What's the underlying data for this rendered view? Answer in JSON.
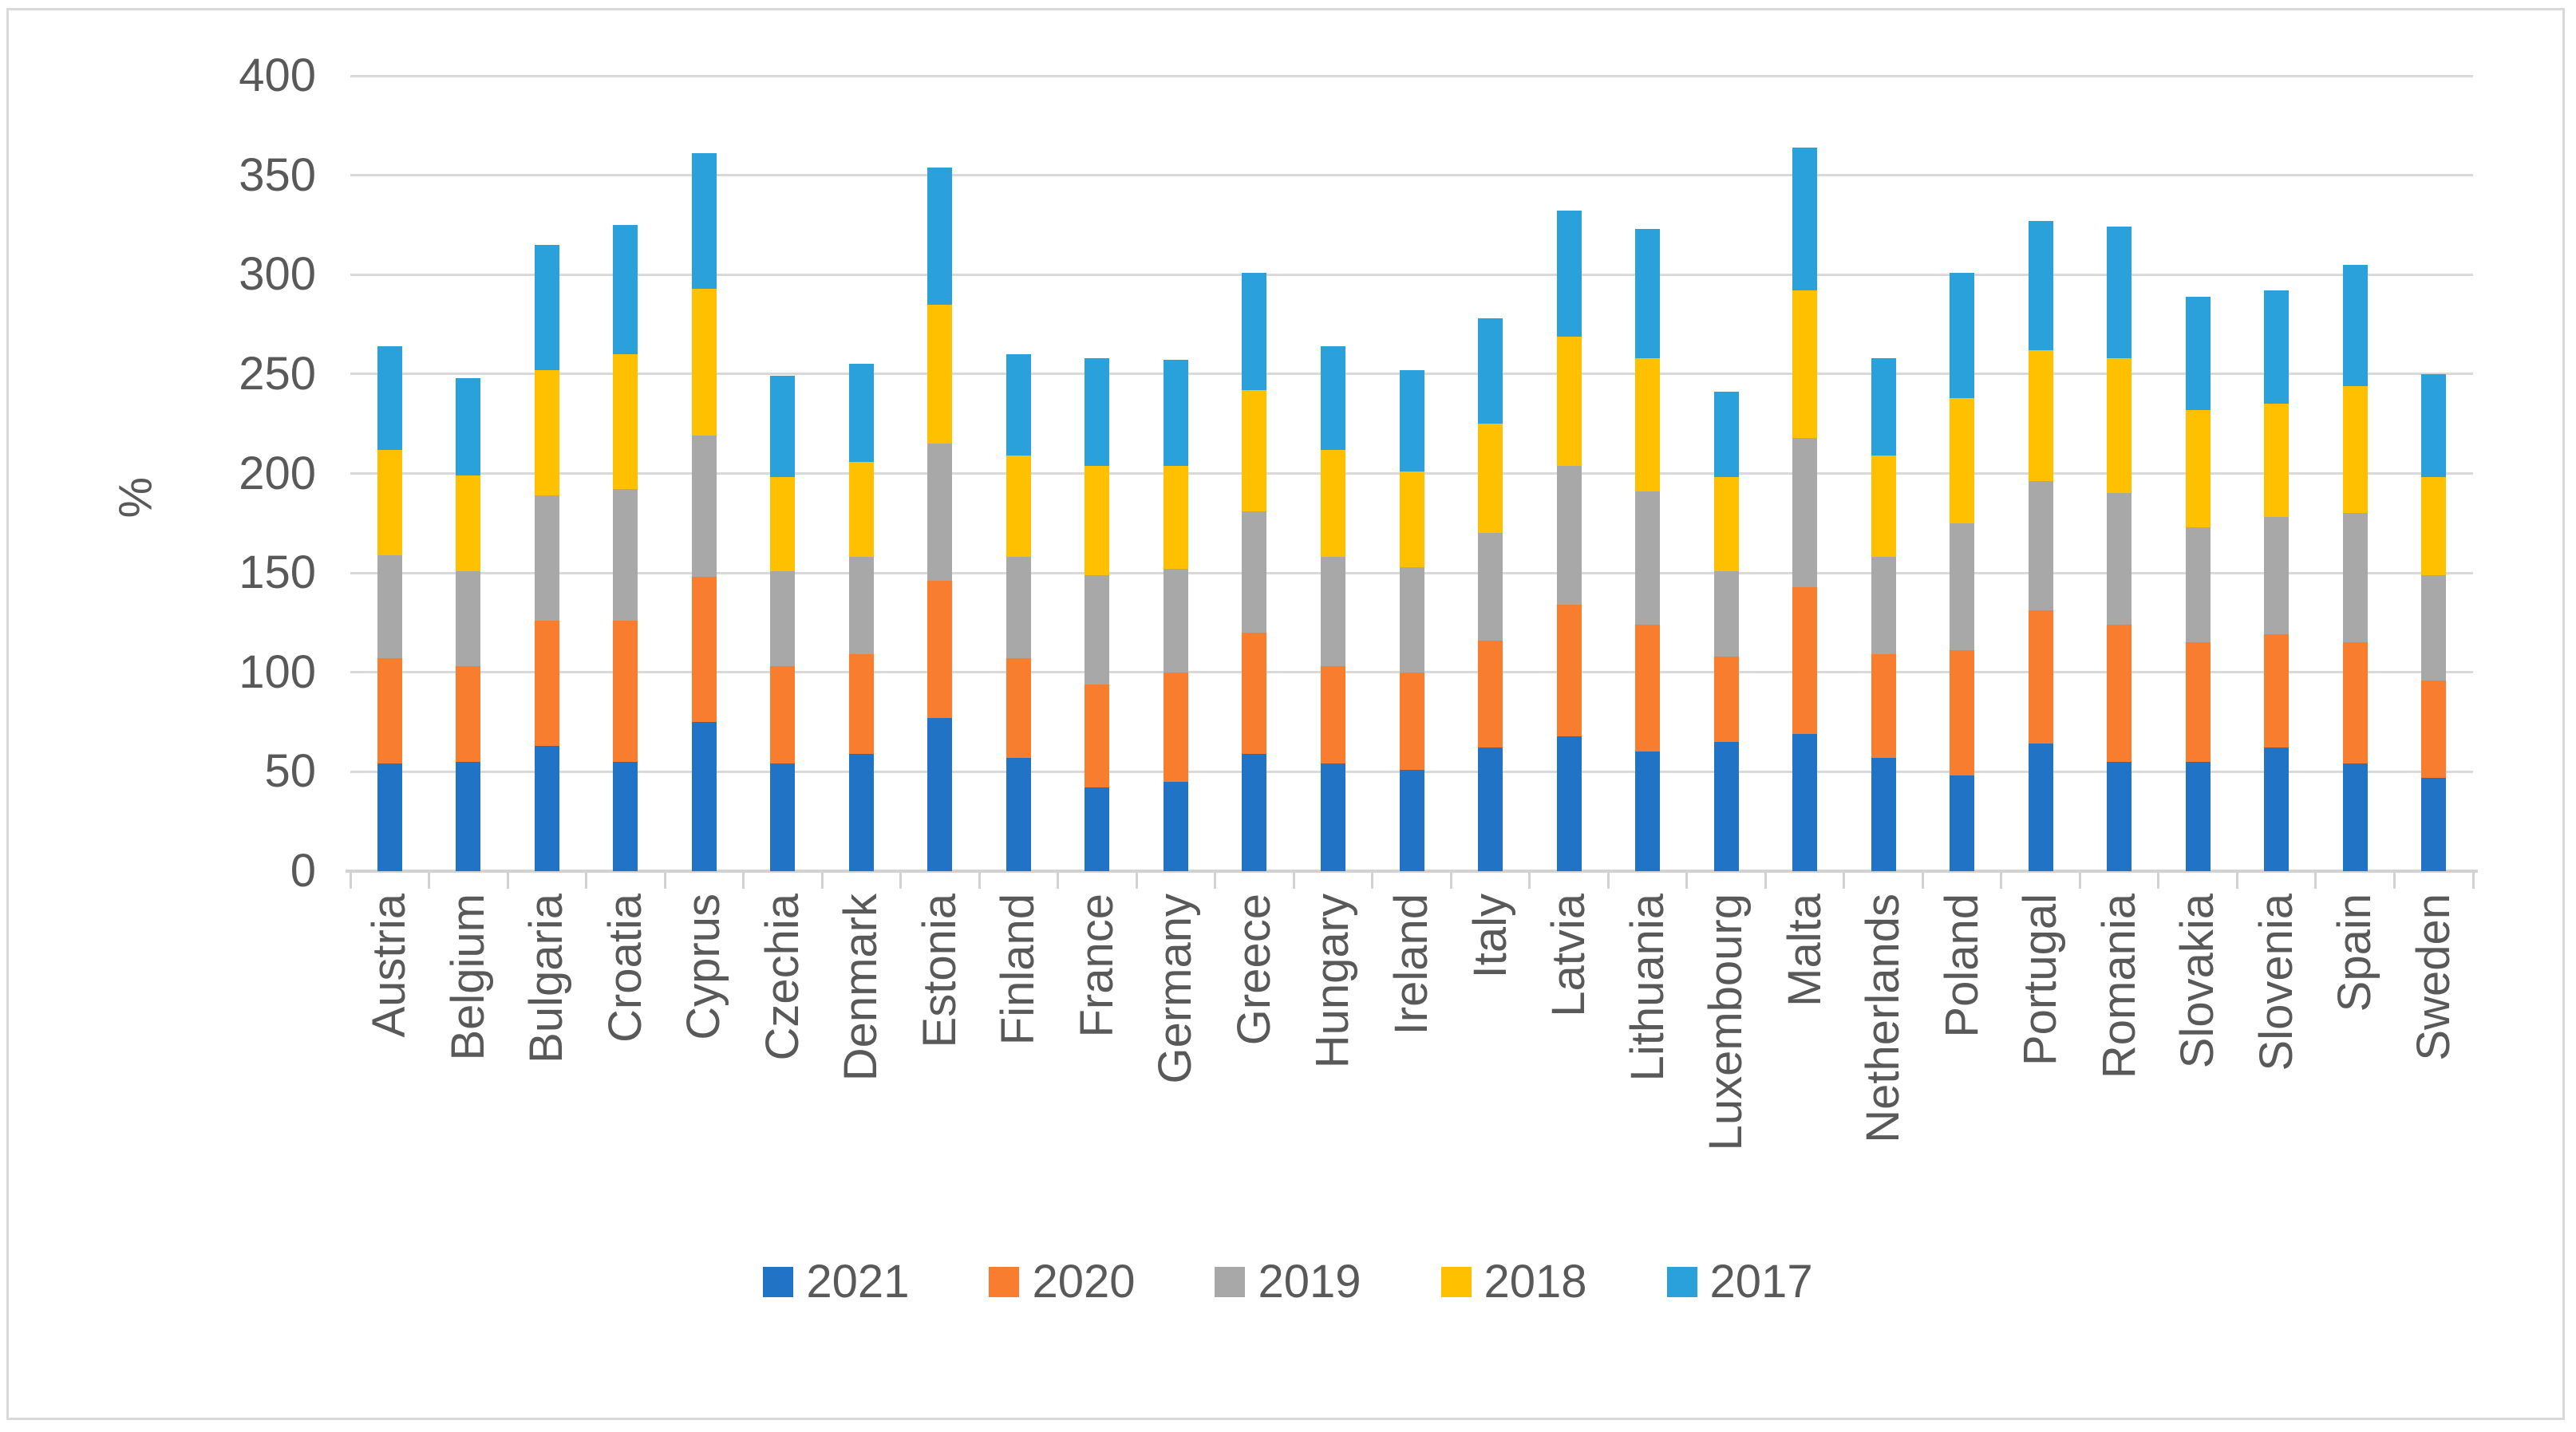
{
  "chart_data": {
    "type": "bar",
    "stacked": true,
    "title": "",
    "ylabel": "%",
    "ylim": [
      0,
      400
    ],
    "yticks": [
      0,
      50,
      100,
      150,
      200,
      250,
      300,
      350,
      400
    ],
    "yticklabels": [
      "0",
      "50",
      "100",
      "150",
      "200",
      "250",
      "300",
      "350",
      "400"
    ],
    "grid": true,
    "legend_position": "bottom",
    "categories": [
      "Austria",
      "Belgium",
      "Bulgaria",
      "Croatia",
      "Cyprus",
      "Czechia",
      "Denmark",
      "Estonia",
      "Finland",
      "France",
      "Germany",
      "Greece",
      "Hungary",
      "Ireland",
      "Italy",
      "Latvia",
      "Lithuania",
      "Luxembourg",
      "Malta",
      "Netherlands",
      "Poland",
      "Portugal",
      "Romania",
      "Slovakia",
      "Slovenia",
      "Spain",
      "Sweden"
    ],
    "series": [
      {
        "name": "2021",
        "color": "#2173C6",
        "values": [
          54,
          55,
          63,
          55,
          75,
          54,
          59,
          77,
          57,
          42,
          45,
          59,
          54,
          51,
          62,
          68,
          60,
          65,
          69,
          57,
          48,
          64,
          55,
          55,
          62,
          54,
          47
        ]
      },
      {
        "name": "2020",
        "color": "#F87D2E",
        "values": [
          53,
          48,
          63,
          71,
          73,
          49,
          50,
          69,
          50,
          52,
          55,
          61,
          49,
          49,
          54,
          66,
          64,
          43,
          74,
          52,
          63,
          67,
          69,
          60,
          57,
          61,
          49
        ]
      },
      {
        "name": "2019",
        "color": "#A8A8A8",
        "values": [
          52,
          48,
          63,
          66,
          71,
          48,
          49,
          69,
          51,
          55,
          52,
          61,
          55,
          53,
          54,
          70,
          67,
          43,
          75,
          49,
          64,
          65,
          66,
          58,
          59,
          65,
          53
        ]
      },
      {
        "name": "2018",
        "color": "#FFC000",
        "values": [
          53,
          48,
          63,
          68,
          74,
          47,
          48,
          70,
          51,
          55,
          52,
          61,
          54,
          48,
          55,
          65,
          67,
          47,
          74,
          51,
          63,
          66,
          68,
          59,
          57,
          64,
          49
        ]
      },
      {
        "name": "2017",
        "color": "#2BA1DB",
        "values": [
          52,
          49,
          63,
          65,
          68,
          51,
          49,
          69,
          51,
          54,
          53,
          59,
          52,
          51,
          53,
          63,
          65,
          43,
          72,
          49,
          63,
          65,
          66,
          57,
          57,
          61,
          52
        ]
      }
    ],
    "totals": [
      264,
      248,
      315,
      325,
      361,
      249,
      255,
      354,
      260,
      258,
      257,
      301,
      264,
      252,
      278,
      332,
      323,
      241,
      364,
      258,
      301,
      327,
      324,
      289,
      292,
      305,
      250
    ]
  },
  "style": {
    "background": "#FFFFFF",
    "border": "#D9D9D9",
    "gridline": "#D9D9D9",
    "axis": "#D2D2D2",
    "text": "#595959"
  }
}
